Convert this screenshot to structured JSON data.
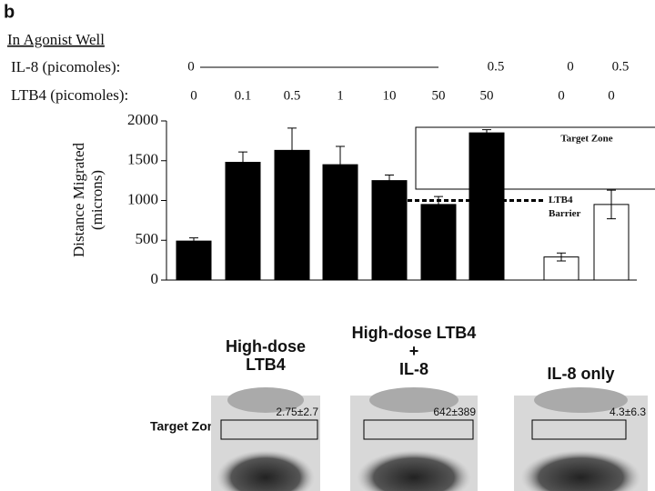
{
  "panel_label": "b",
  "header": {
    "title": "In Agonist Well",
    "il8_label": "IL-8 (picomoles):",
    "ltb4_label": "LTB4 (picomoles):",
    "il8_values": [
      "0",
      null,
      null,
      null,
      null,
      null,
      "0.5",
      "0",
      "0.5"
    ]
  },
  "chart_data": {
    "type": "bar",
    "y_label": [
      "Distance Migrated",
      "(microns)"
    ],
    "categories": [
      "0",
      "0.1",
      "0.5",
      "1",
      "10",
      "50",
      "50",
      "0",
      "0"
    ],
    "values": [
      490,
      1480,
      1630,
      1450,
      1250,
      950,
      1850,
      290,
      950
    ],
    "errors": [
      40,
      130,
      280,
      230,
      70,
      100,
      40,
      50,
      180
    ],
    "colors": [
      "#000000",
      "#000000",
      "#000000",
      "#000000",
      "#000000",
      "#000000",
      "#000000",
      "#ffffff",
      "#ffffff"
    ],
    "ylim": [
      0,
      2000
    ],
    "yticks": [
      0,
      500,
      1000,
      1500,
      2000
    ],
    "target_zone_label": "Target Zone",
    "barrier_label": [
      "LTB4",
      "Barrier"
    ],
    "barrier_value": 1000
  },
  "images": {
    "row_label": "Target Zone",
    "panels": [
      {
        "title": [
          "High-dose",
          "LTB4"
        ],
        "count": "2.75±2.7"
      },
      {
        "title": [
          "High-dose LTB4",
          "+",
          "IL-8"
        ],
        "count": "642±389"
      },
      {
        "title": [
          "IL-8 only"
        ],
        "count": "4.3±6.3"
      }
    ]
  }
}
